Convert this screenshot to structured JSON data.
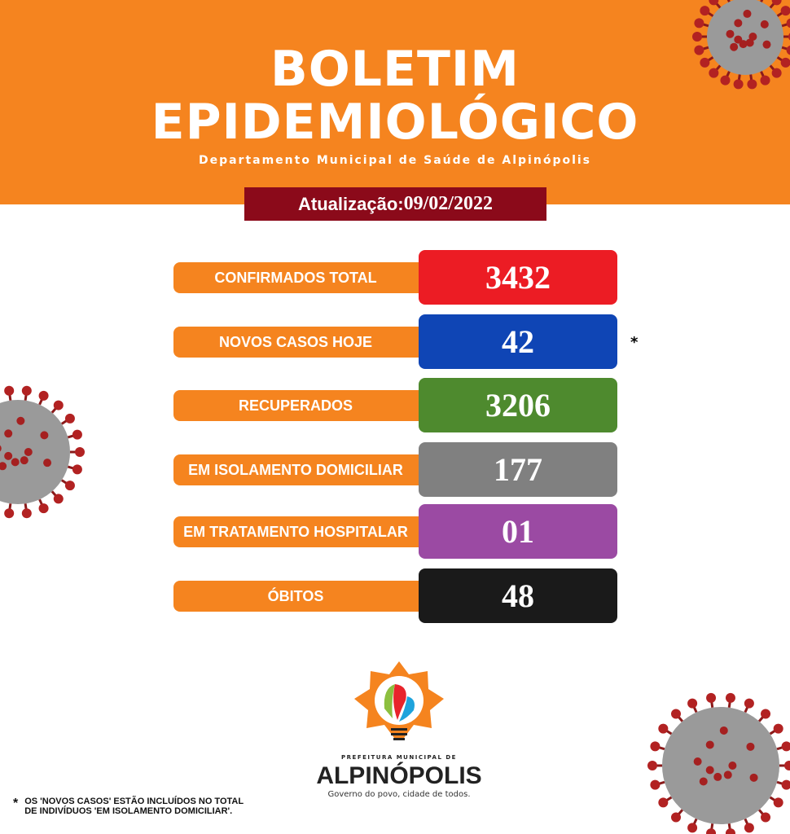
{
  "header": {
    "title_line1": "BOLETIM",
    "title_line2": "EPIDEMIOLÓGICO",
    "subtitle": "Departamento Municipal de Saúde de Alpinópolis",
    "color": "#f5841f"
  },
  "update": {
    "label": "Atualização:",
    "date": "09/02/2022"
  },
  "stats": [
    {
      "label": "CONFIRMADOS TOTAL",
      "value": "3432",
      "color": "#ec1c24"
    },
    {
      "label": "NOVOS CASOS HOJE",
      "value": "42",
      "color": "#0f45b5",
      "marker": "*"
    },
    {
      "label": "RECUPERADOS",
      "value": "3206",
      "color": "#4e8a2e"
    },
    {
      "label": "EM ISOLAMENTO DOMICILIAR",
      "value": "177",
      "color": "#808080"
    },
    {
      "label": "EM TRATAMENTO HOSPITALAR",
      "value": "01",
      "color": "#9b4aa3"
    },
    {
      "label": "ÓBITOS",
      "value": "48",
      "color": "#1a1a1a"
    }
  ],
  "logo": {
    "prefix": "PREFEITURA MUNICIPAL DE",
    "city": "ALPINÓPOLIS",
    "slogan": "Governo do povo, cidade de todos."
  },
  "footnote": {
    "marker": "*",
    "line1": "OS 'NOVOS CASOS' ESTÃO INCLUÍDOS NO TOTAL",
    "line2": "DE  INDIVÍDUOS  'EM ISOLAMENTO DOMICILIAR'."
  }
}
